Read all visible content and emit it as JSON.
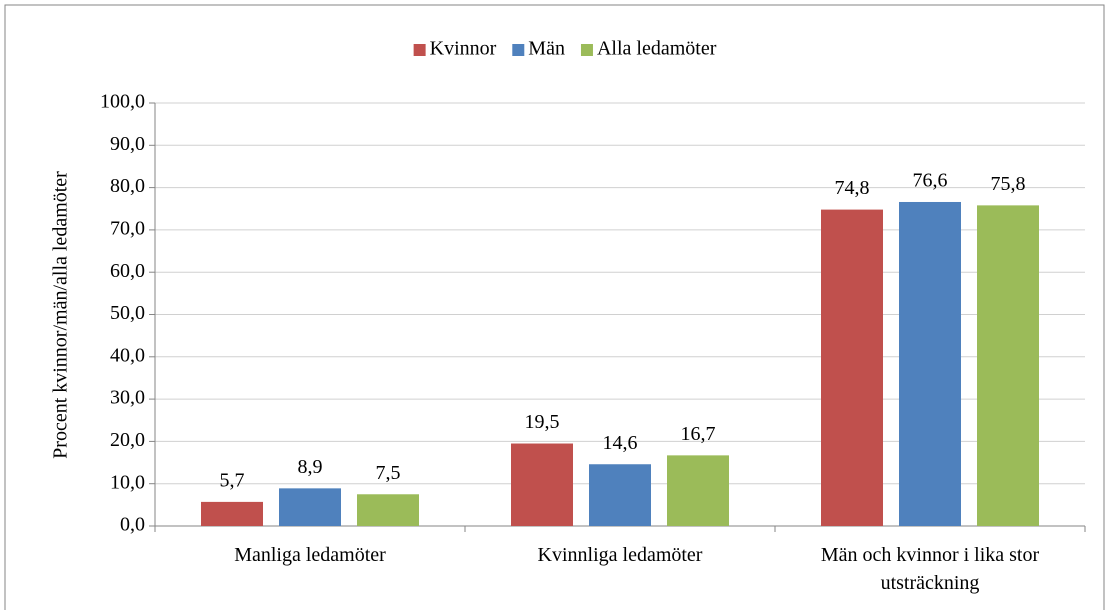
{
  "chart_data": {
    "type": "bar",
    "y_label": "Procent kvinnor/män/alla ledamöter",
    "categories": [
      "Manliga ledamöter",
      "Kvinnliga ledamöter",
      "Män och kvinnor i lika stor utsträckning"
    ],
    "series": [
      {
        "name": "Kvinnor",
        "color": "#c0504d",
        "values": [
          5.7,
          19.5,
          74.8
        ],
        "value_labels": [
          "5,7",
          "19,5",
          "74,8"
        ]
      },
      {
        "name": "Män",
        "color": "#4f81bd",
        "values": [
          8.9,
          14.6,
          76.6
        ],
        "value_labels": [
          "8,9",
          "14,6",
          "76,6"
        ]
      },
      {
        "name": "Alla ledamöter",
        "color": "#9bbb59",
        "values": [
          7.5,
          16.7,
          75.8
        ],
        "value_labels": [
          "7,5",
          "16,7",
          "75,8"
        ]
      }
    ],
    "ylim": [
      0,
      100
    ],
    "yticks": [
      {
        "value": 0,
        "label": "0,0"
      },
      {
        "value": 10,
        "label": "10,0"
      },
      {
        "value": 20,
        "label": "20,0"
      },
      {
        "value": 30,
        "label": "30,0"
      },
      {
        "value": 40,
        "label": "40,0"
      },
      {
        "value": 50,
        "label": "50,0"
      },
      {
        "value": 60,
        "label": "60,0"
      },
      {
        "value": 70,
        "label": "70,0"
      },
      {
        "value": 80,
        "label": "80,0"
      },
      {
        "value": 90,
        "label": "90,0"
      },
      {
        "value": 100,
        "label": "100,0"
      }
    ],
    "grid": true,
    "legend": "top"
  }
}
